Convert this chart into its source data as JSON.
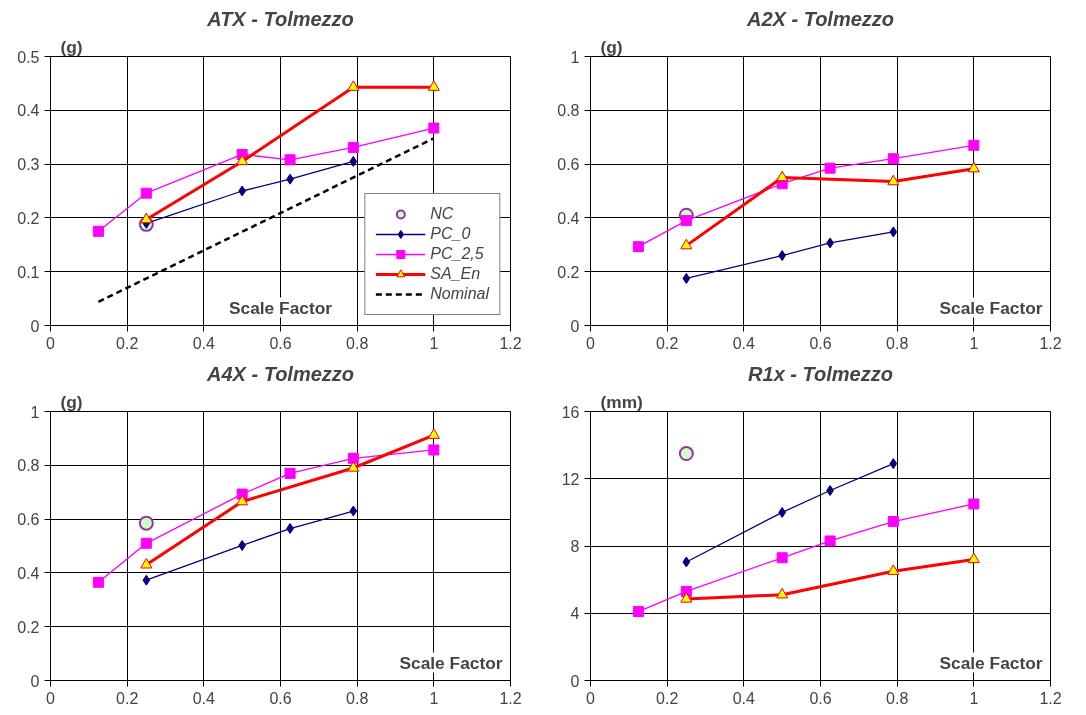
{
  "chart_data": [
    {
      "type": "line",
      "title": "ATX - Tolmezzo",
      "ylabel": "(g)",
      "xlabel": "Scale Factor",
      "xlim": [
        0,
        1.2
      ],
      "ylim": [
        0,
        0.5
      ],
      "xticks": [
        0,
        0.2,
        0.4,
        0.6,
        0.8,
        1,
        1.2
      ],
      "yticks": [
        0,
        0.1,
        0.2,
        0.3,
        0.4,
        0.5
      ],
      "grid": true,
      "legend": "bottom right",
      "series": [
        {
          "name": "NC",
          "type": "scatter",
          "marker": "circle",
          "color": "#993399",
          "x": [
            0.25
          ],
          "values": [
            0.188
          ]
        },
        {
          "name": "PC_0",
          "marker": "diamond",
          "line_style": "solid",
          "color": "#000080",
          "x": [
            0.25,
            0.5,
            0.625,
            0.79
          ],
          "values": [
            0.19,
            0.25,
            0.272,
            0.305
          ]
        },
        {
          "name": "PC_2,5",
          "marker": "square",
          "line_style": "solid",
          "color": "#ff00ff",
          "x": [
            0.125,
            0.25,
            0.5,
            0.625,
            0.79,
            1
          ],
          "values": [
            0.175,
            0.246,
            0.318,
            0.308,
            0.331,
            0.367
          ]
        },
        {
          "name": "SA_En",
          "marker": "triangle",
          "line_style": "solid",
          "color": "#ff0000",
          "x": [
            0.25,
            0.5,
            0.79,
            1
          ],
          "values": [
            0.197,
            0.305,
            0.443,
            0.443
          ]
        },
        {
          "name": "Nominal",
          "marker": "none",
          "line_style": "dashed",
          "color": "#000000",
          "x": [
            0.125,
            1
          ],
          "values": [
            0.044,
            0.348
          ]
        }
      ]
    },
    {
      "type": "line",
      "title": "A2X - Tolmezzo",
      "ylabel": "(g)",
      "xlabel": "Scale Factor",
      "xlim": [
        0,
        1.2
      ],
      "ylim": [
        0,
        1
      ],
      "xticks": [
        0,
        0.2,
        0.4,
        0.6,
        0.8,
        1,
        1.2
      ],
      "yticks": [
        0,
        0.2,
        0.4,
        0.6,
        0.8,
        1
      ],
      "grid": true,
      "legend": false,
      "series": [
        {
          "type": "scatter",
          "marker": "circle",
          "color": "#993399",
          "x": [
            0.25
          ],
          "values": [
            0.41
          ]
        },
        {
          "marker": "diamond",
          "line_style": "solid",
          "color": "#000080",
          "x": [
            0.25,
            0.5,
            0.625,
            0.79
          ],
          "values": [
            0.175,
            0.26,
            0.307,
            0.348
          ]
        },
        {
          "marker": "square",
          "line_style": "solid",
          "color": "#ff00ff",
          "x": [
            0.125,
            0.25,
            0.5,
            0.625,
            0.79,
            1
          ],
          "values": [
            0.293,
            0.39,
            0.527,
            0.585,
            0.62,
            0.67
          ]
        },
        {
          "marker": "triangle",
          "line_style": "solid",
          "color": "#ff0000",
          "x": [
            0.25,
            0.5,
            0.79,
            1
          ],
          "values": [
            0.297,
            0.55,
            0.535,
            0.583
          ]
        }
      ]
    },
    {
      "type": "line",
      "title": "A4X - Tolmezzo",
      "ylabel": "(g)",
      "xlabel": "Scale Factor",
      "xlim": [
        0,
        1.2
      ],
      "ylim": [
        0,
        1
      ],
      "xticks": [
        0,
        0.2,
        0.4,
        0.6,
        0.8,
        1,
        1.2
      ],
      "yticks": [
        0,
        0.2,
        0.4,
        0.6,
        0.8,
        1
      ],
      "grid": true,
      "legend": false,
      "series": [
        {
          "type": "scatter",
          "marker": "circle",
          "color": "#993399",
          "x": [
            0.25
          ],
          "values": [
            0.585
          ]
        },
        {
          "marker": "diamond",
          "line_style": "solid",
          "color": "#000080",
          "x": [
            0.25,
            0.5,
            0.625,
            0.79
          ],
          "values": [
            0.373,
            0.502,
            0.565,
            0.63
          ]
        },
        {
          "marker": "square",
          "line_style": "solid",
          "color": "#ff00ff",
          "x": [
            0.125,
            0.25,
            0.5,
            0.625,
            0.79,
            1
          ],
          "values": [
            0.365,
            0.51,
            0.693,
            0.77,
            0.826,
            0.857
          ]
        },
        {
          "marker": "triangle",
          "line_style": "solid",
          "color": "#ff0000",
          "x": [
            0.25,
            0.5,
            0.79,
            1
          ],
          "values": [
            0.43,
            0.665,
            0.79,
            0.912
          ]
        }
      ]
    },
    {
      "type": "line",
      "title": "R1x - Tolmezzo",
      "ylabel": "(mm)",
      "xlabel": "Scale Factor",
      "xlim": [
        0,
        1.2
      ],
      "ylim": [
        0,
        16
      ],
      "xticks": [
        0,
        0.2,
        0.4,
        0.6,
        0.8,
        1,
        1.2
      ],
      "yticks": [
        0,
        4,
        8,
        12,
        16
      ],
      "grid": true,
      "legend": false,
      "series": [
        {
          "type": "scatter",
          "marker": "circle",
          "color": "#993399",
          "x": [
            0.25
          ],
          "values": [
            13.5
          ]
        },
        {
          "marker": "diamond",
          "line_style": "solid",
          "color": "#000080",
          "x": [
            0.25,
            0.5,
            0.625,
            0.79
          ],
          "values": [
            7.05,
            10.0,
            11.3,
            12.9
          ]
        },
        {
          "marker": "square",
          "line_style": "solid",
          "color": "#ff00ff",
          "x": [
            0.125,
            0.25,
            0.5,
            0.625,
            0.79,
            1
          ],
          "values": [
            4.1,
            5.3,
            7.3,
            8.3,
            9.45,
            10.5
          ]
        },
        {
          "marker": "triangle",
          "line_style": "solid",
          "color": "#ff0000",
          "x": [
            0.25,
            0.5,
            0.79,
            1
          ],
          "values": [
            4.85,
            5.1,
            6.5,
            7.2
          ]
        }
      ]
    }
  ]
}
